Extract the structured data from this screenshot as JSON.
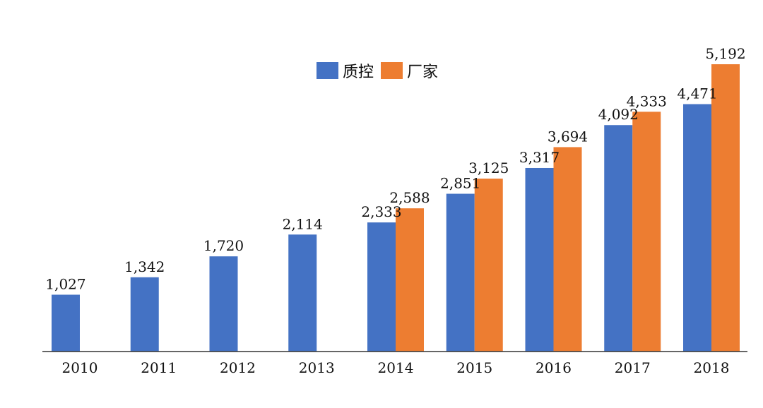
{
  "chart_data": {
    "type": "bar",
    "categories": [
      "2010",
      "2011",
      "2012",
      "2013",
      "2014",
      "2015",
      "2016",
      "2017",
      "2018"
    ],
    "series": [
      {
        "name": "质控",
        "color": "#4472C4",
        "values": [
          1027,
          1342,
          1720,
          2114,
          2333,
          2851,
          3317,
          4092,
          4471
        ],
        "labels": [
          "1,027",
          "1,342",
          "1,720",
          "2,114",
          "2,333",
          "2,851",
          "3,317",
          "4,092",
          "4,471"
        ]
      },
      {
        "name": "厂家",
        "color": "#ED7D31",
        "values": [
          null,
          null,
          null,
          null,
          2588,
          3125,
          3694,
          4333,
          5192
        ],
        "labels": [
          "",
          "",
          "",
          "",
          "2,588",
          "3,125",
          "3,694",
          "4,333",
          "5,192"
        ]
      }
    ],
    "title": "",
    "xlabel": "",
    "ylabel": "",
    "ylim": [
      0,
      5192
    ],
    "grid": false,
    "legend_position": "top-center"
  }
}
